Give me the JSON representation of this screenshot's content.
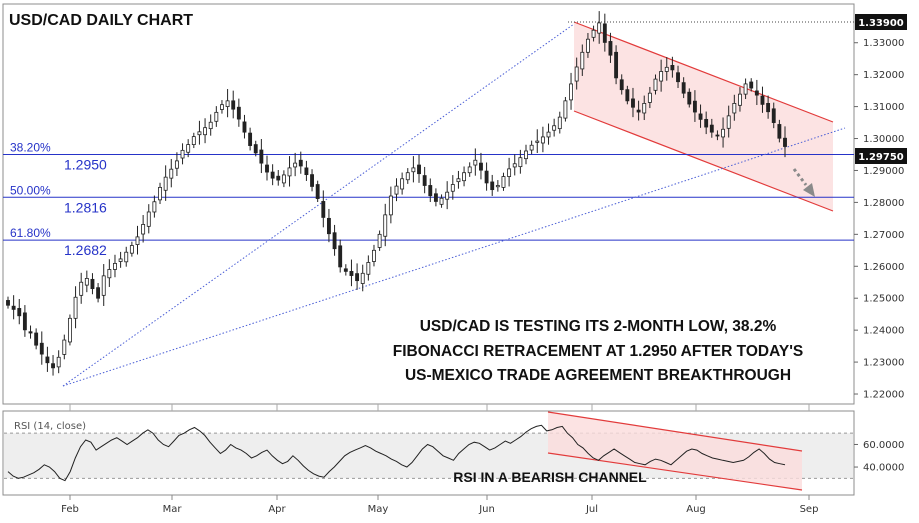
{
  "colors": {
    "candle": "#222222",
    "fib_line": "#2633c8",
    "trend_line": "#4a5ed6",
    "channel": "#e23b3b",
    "channel_fill": "#fbdcdc",
    "rsi_line": "#222222",
    "rsi_bg": "#eeeeee",
    "arrow": "#8a8a8a"
  },
  "chart_data": [
    {
      "type": "candlestick",
      "title": "USD/CAD DAILY CHART",
      "ylim": [
        1.2175,
        1.3415
      ],
      "y_ticks": [
        "1.22000",
        "1.23000",
        "1.24000",
        "1.25000",
        "1.26000",
        "1.27000",
        "1.28000",
        "1.29000",
        "1.30000",
        "1.31000",
        "1.32000",
        "1.33000"
      ],
      "x_months": [
        "Feb",
        "Mar",
        "Apr",
        "May",
        "Jun",
        "Jul",
        "Aug",
        "Sep"
      ],
      "price_tags": [
        "1.33900",
        "1.29750"
      ],
      "close_series": [
        1.2478,
        1.2465,
        1.2445,
        1.2401,
        1.2391,
        1.2353,
        1.2325,
        1.2298,
        1.2282,
        1.2315,
        1.2369,
        1.2437,
        1.2503,
        1.255,
        1.2562,
        1.253,
        1.25,
        1.257,
        1.259,
        1.2609,
        1.2623,
        1.2644,
        1.2665,
        1.2692,
        1.2731,
        1.277,
        1.2802,
        1.2847,
        1.2879,
        1.2904,
        1.293,
        1.2963,
        1.2981,
        1.3006,
        1.3021,
        1.3034,
        1.3051,
        1.3082,
        1.3106,
        1.3118,
        1.3092,
        1.3061,
        1.302,
        1.2978,
        1.2955,
        1.2923,
        1.2895,
        1.2876,
        1.287,
        1.2886,
        1.2908,
        1.2923,
        1.2914,
        1.2887,
        1.285,
        1.2812,
        1.2753,
        1.2702,
        1.2655,
        1.2598,
        1.2584,
        1.2571,
        1.2555,
        1.2578,
        1.2612,
        1.265,
        1.27,
        1.2761,
        1.282,
        1.2851,
        1.2874,
        1.2893,
        1.2908,
        1.289,
        1.2853,
        1.2821,
        1.2803,
        1.2813,
        1.2832,
        1.2856,
        1.2874,
        1.2893,
        1.2911,
        1.2932,
        1.2901,
        1.2861,
        1.284,
        1.2853,
        1.2881,
        1.2905,
        1.2921,
        1.294,
        1.2961,
        1.2979,
        1.2992,
        1.3005,
        1.302,
        1.304,
        1.3067,
        1.3118,
        1.3171,
        1.3224,
        1.327,
        1.3311,
        1.3339,
        1.3362,
        1.3301,
        1.3261,
        1.319,
        1.3153,
        1.3118,
        1.3098,
        1.3083,
        1.311,
        1.3142,
        1.3186,
        1.321,
        1.3223,
        1.3215,
        1.3178,
        1.3142,
        1.3108,
        1.3083,
        1.306,
        1.3036,
        1.302,
        1.3008,
        1.3029,
        1.3071,
        1.311,
        1.3139,
        1.3171,
        1.3158,
        1.3136,
        1.3107,
        1.3084,
        1.305,
        1.3001,
        1.2975
      ],
      "fib_levels": [
        {
          "pct": "38.20%",
          "value": "1.2950",
          "price": 1.295
        },
        {
          "pct": "50.00%",
          "value": "1.2816",
          "price": 1.2816
        },
        {
          "pct": "61.80%",
          "value": "1.2682",
          "price": 1.2682
        }
      ],
      "annotation": [
        "USD/CAD IS TESTING ITS 2-MONTH LOW, 38.2%",
        "FIBONACCI RETRACEMENT AT 1.2950 AFTER TODAY'S",
        "US-MEXICO TRADE AGREEMENT BREAKTHROUGH"
      ]
    },
    {
      "type": "line",
      "title": "RSI (14, close)",
      "y_ticks": [
        "60.0000",
        "40.0000"
      ],
      "annotation": "RSI IN A BEARISH CHANNEL",
      "values": [
        36,
        32,
        30,
        31,
        33,
        35,
        38,
        42,
        40,
        36,
        30,
        28,
        36,
        48,
        58,
        64,
        62,
        55,
        58,
        61,
        64,
        66,
        63,
        60,
        63,
        66,
        70,
        73,
        70,
        64,
        60,
        58,
        63,
        68,
        70,
        73,
        75,
        72,
        68,
        62,
        57,
        52,
        55,
        60,
        57,
        55,
        52,
        48,
        50,
        53,
        55,
        50,
        46,
        43,
        45,
        50,
        46,
        41,
        37,
        34,
        32,
        31,
        36,
        40,
        45,
        50,
        53,
        55,
        57,
        59,
        57,
        54,
        52,
        50,
        47,
        45,
        42,
        40,
        44,
        50,
        56,
        60,
        58,
        54,
        50,
        48,
        46,
        52,
        56,
        60,
        62,
        61,
        58,
        55,
        57,
        60,
        63,
        61,
        64,
        67,
        71,
        74,
        76,
        77,
        72,
        73,
        75,
        76,
        70,
        66,
        60,
        57,
        52,
        48,
        46,
        50,
        53,
        56,
        53,
        50,
        47,
        44,
        43,
        42,
        45,
        47,
        46,
        44,
        42,
        46,
        50,
        54,
        56,
        55,
        52,
        50,
        48,
        47,
        46,
        45,
        44,
        45,
        46,
        49,
        53,
        56,
        52,
        47,
        44,
        43,
        42
      ]
    }
  ]
}
